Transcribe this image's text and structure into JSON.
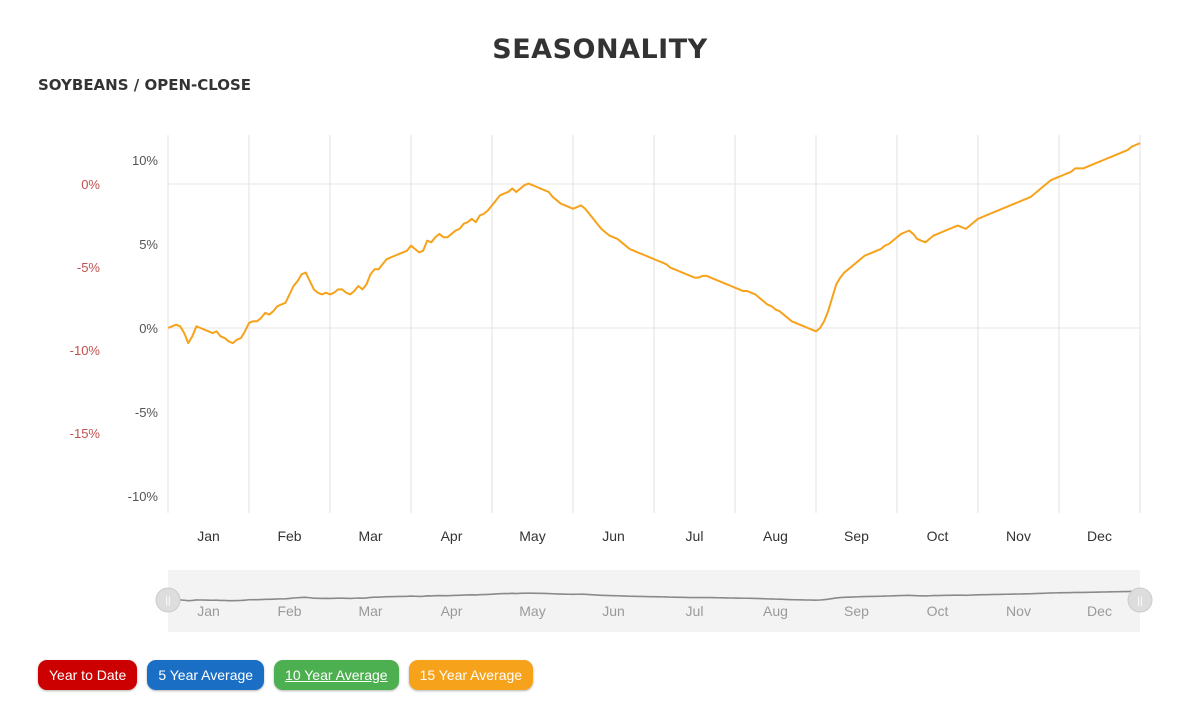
{
  "page": {
    "title": "SEASONALITY",
    "subtitle": "SOYBEANS / OPEN-CLOSE"
  },
  "buttons": [
    {
      "label": "Year to Date",
      "color": "#cc0000"
    },
    {
      "label": "5 Year Average",
      "color": "#1a6fc4"
    },
    {
      "label": "10 Year Average",
      "color": "#4caf50",
      "active": true
    },
    {
      "label": "15 Year Average",
      "color": "#f7a21b"
    }
  ],
  "chart_data": {
    "type": "line",
    "title": "SEASONALITY",
    "subtitle": "SOYBEANS / OPEN-CLOSE",
    "x_categories": [
      "Jan",
      "Feb",
      "Mar",
      "Apr",
      "May",
      "Jun",
      "Jul",
      "Aug",
      "Sep",
      "Oct",
      "Nov",
      "Dec"
    ],
    "y_left_ticks": [
      "10%",
      "5%",
      "0%",
      "-5%",
      "-10%"
    ],
    "y_left_range": [
      -10,
      10
    ],
    "y_right_ticks": [
      "0%",
      "-5%",
      "-10%",
      "-15%"
    ],
    "y_right_color": "#c0504d",
    "grid": true,
    "series": [
      {
        "color": "#f7a21b",
        "x": [
          0.0,
          0.05,
          0.1,
          0.15,
          0.2,
          0.25,
          0.3,
          0.35,
          0.4,
          0.45,
          0.5,
          0.55,
          0.6,
          0.65,
          0.7,
          0.75,
          0.8,
          0.85,
          0.9,
          0.95,
          1.0,
          1.05,
          1.1,
          1.15,
          1.2,
          1.25,
          1.3,
          1.35,
          1.4,
          1.45,
          1.5,
          1.55,
          1.6,
          1.65,
          1.7,
          1.75,
          1.8,
          1.85,
          1.9,
          1.95,
          2.0,
          2.05,
          2.1,
          2.15,
          2.2,
          2.25,
          2.3,
          2.35,
          2.4,
          2.45,
          2.5,
          2.55,
          2.6,
          2.65,
          2.7,
          2.75,
          2.8,
          2.85,
          2.9,
          2.95,
          3.0,
          3.05,
          3.1,
          3.15,
          3.2,
          3.25,
          3.3,
          3.35,
          3.4,
          3.45,
          3.5,
          3.55,
          3.6,
          3.65,
          3.7,
          3.75,
          3.8,
          3.85,
          3.9,
          3.95,
          4.0,
          4.05,
          4.1,
          4.15,
          4.2,
          4.25,
          4.3,
          4.35,
          4.4,
          4.45,
          4.5,
          4.55,
          4.6,
          4.65,
          4.7,
          4.75,
          4.8,
          4.85,
          4.9,
          4.95,
          5.0,
          5.05,
          5.1,
          5.15,
          5.2,
          5.25,
          5.3,
          5.35,
          5.4,
          5.45,
          5.5,
          5.55,
          5.6,
          5.65,
          5.7,
          5.75,
          5.8,
          5.85,
          5.9,
          5.95,
          6.0,
          6.05,
          6.1,
          6.15,
          6.2,
          6.25,
          6.3,
          6.35,
          6.4,
          6.45,
          6.5,
          6.55,
          6.6,
          6.65,
          6.7,
          6.75,
          6.8,
          6.85,
          6.9,
          6.95,
          7.0,
          7.05,
          7.1,
          7.15,
          7.2,
          7.25,
          7.3,
          7.35,
          7.4,
          7.45,
          7.5,
          7.55,
          7.6,
          7.65,
          7.7,
          7.75,
          7.8,
          7.85,
          7.9,
          7.95,
          8.0,
          8.05,
          8.1,
          8.15,
          8.2,
          8.25,
          8.3,
          8.35,
          8.4,
          8.45,
          8.5,
          8.55,
          8.6,
          8.65,
          8.7,
          8.75,
          8.8,
          8.85,
          8.9,
          8.95,
          9.0,
          9.05,
          9.1,
          9.15,
          9.2,
          9.25,
          9.3,
          9.35,
          9.4,
          9.45,
          9.5,
          9.55,
          9.6,
          9.65,
          9.7,
          9.75,
          9.8,
          9.85,
          9.9,
          9.95,
          10.0,
          10.05,
          10.1,
          10.15,
          10.2,
          10.25,
          10.3,
          10.35,
          10.4,
          10.45,
          10.5,
          10.55,
          10.6,
          10.65,
          10.7,
          10.75,
          10.8,
          10.85,
          10.9,
          10.95,
          11.0,
          11.05,
          11.1,
          11.15,
          11.2,
          11.25,
          11.3,
          11.35,
          11.4,
          11.45,
          11.5,
          11.55,
          11.6,
          11.65,
          11.7,
          11.75,
          11.8,
          11.85,
          11.9,
          11.95,
          12.0
        ],
        "y": [
          0.0,
          0.1,
          0.2,
          0.1,
          -0.3,
          -0.9,
          -0.5,
          0.1,
          0.0,
          -0.1,
          -0.2,
          -0.3,
          -0.2,
          -0.5,
          -0.6,
          -0.8,
          -0.9,
          -0.7,
          -0.6,
          -0.2,
          0.3,
          0.4,
          0.4,
          0.6,
          0.9,
          0.8,
          1.0,
          1.3,
          1.4,
          1.5,
          2.0,
          2.5,
          2.8,
          3.2,
          3.3,
          2.8,
          2.3,
          2.1,
          2.0,
          2.1,
          2.0,
          2.1,
          2.3,
          2.3,
          2.1,
          2.0,
          2.2,
          2.5,
          2.3,
          2.6,
          3.2,
          3.5,
          3.5,
          3.8,
          4.1,
          4.2,
          4.3,
          4.4,
          4.5,
          4.6,
          4.9,
          4.7,
          4.5,
          4.6,
          5.2,
          5.1,
          5.4,
          5.6,
          5.4,
          5.4,
          5.6,
          5.8,
          5.9,
          6.2,
          6.3,
          6.5,
          6.3,
          6.7,
          6.8,
          7.0,
          7.3,
          7.6,
          7.9,
          8.0,
          8.1,
          8.3,
          8.1,
          8.3,
          8.5,
          8.6,
          8.5,
          8.4,
          8.3,
          8.2,
          8.1,
          7.8,
          7.6,
          7.4,
          7.3,
          7.2,
          7.1,
          7.2,
          7.3,
          7.1,
          6.8,
          6.5,
          6.2,
          5.9,
          5.7,
          5.5,
          5.4,
          5.3,
          5.1,
          4.9,
          4.7,
          4.6,
          4.5,
          4.4,
          4.3,
          4.2,
          4.1,
          4.0,
          3.9,
          3.8,
          3.6,
          3.5,
          3.4,
          3.3,
          3.2,
          3.1,
          3.0,
          3.0,
          3.1,
          3.1,
          3.0,
          2.9,
          2.8,
          2.7,
          2.6,
          2.5,
          2.4,
          2.3,
          2.2,
          2.2,
          2.1,
          2.0,
          1.8,
          1.6,
          1.4,
          1.3,
          1.1,
          1.0,
          0.8,
          0.6,
          0.4,
          0.3,
          0.2,
          0.1,
          0.0,
          -0.1,
          -0.2,
          0.0,
          0.4,
          1.0,
          1.8,
          2.6,
          3.0,
          3.3,
          3.5,
          3.7,
          3.9,
          4.1,
          4.3,
          4.4,
          4.5,
          4.6,
          4.7,
          4.9,
          5.0,
          5.2,
          5.4,
          5.6,
          5.7,
          5.8,
          5.6,
          5.3,
          5.2,
          5.1,
          5.3,
          5.5,
          5.6,
          5.7,
          5.8,
          5.9,
          6.0,
          6.1,
          6.0,
          5.9,
          6.1,
          6.3,
          6.5,
          6.6,
          6.7,
          6.8,
          6.9,
          7.0,
          7.1,
          7.2,
          7.3,
          7.4,
          7.5,
          7.6,
          7.7,
          7.8,
          8.0,
          8.2,
          8.4,
          8.6,
          8.8,
          8.9,
          9.0,
          9.1,
          9.2,
          9.3,
          9.5,
          9.5,
          9.5,
          9.6,
          9.7,
          9.8,
          9.9,
          10.0,
          10.1,
          10.2,
          10.3,
          10.4,
          10.5,
          10.6,
          10.8,
          10.9,
          11.0
        ]
      }
    ]
  },
  "navigator": {
    "labels": [
      "Jan",
      "Feb",
      "Mar",
      "Apr",
      "May",
      "Jun",
      "Jul",
      "Aug",
      "Sep",
      "Oct",
      "Nov",
      "Dec"
    ],
    "left_handle": "||",
    "right_handle": "||"
  }
}
